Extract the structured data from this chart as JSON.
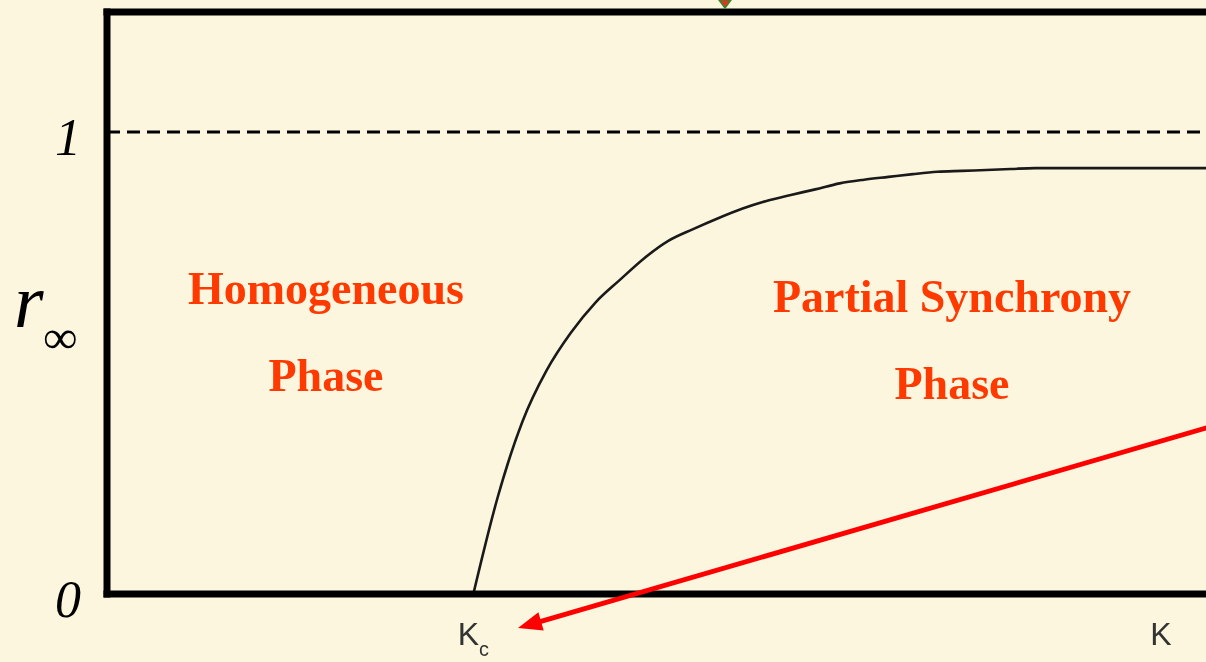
{
  "chart_data": {
    "type": "line",
    "xlabel": "K",
    "ylabel": "r$_{∞}$",
    "categories": [
      null,
      null,
      null,
      null,
      null,
      null,
      null,
      null,
      null,
      null,
      null,
      null,
      null,
      null,
      null,
      "K$_{c}$",
      null,
      null,
      null,
      null,
      null,
      null,
      null,
      null,
      null,
      null,
      null,
      null,
      null,
      null,
      null,
      null,
      null,
      null,
      null,
      null,
      null,
      null,
      null,
      null,
      null,
      null,
      null,
      null,
      null,
      null
    ],
    "series": [
      {
        "color": "#1a1a1a",
        "values": [
          null,
          null,
          null,
          null,
          null,
          null,
          null,
          null,
          null,
          null,
          null,
          null,
          null,
          null,
          null,
          0,
          0.21,
          0.372,
          0.484,
          0.566,
          0.631,
          0.68,
          0.727,
          0.765,
          0.79,
          0.813,
          0.834,
          0.851,
          0.864,
          0.876,
          0.889,
          0.897,
          0.903,
          0.909,
          0.914,
          0.916,
          0.918,
          0.92,
          0.922,
          0.922,
          0.922,
          0.922,
          0.922,
          0.922,
          0.922,
          0.922
        ]
      }
    ],
    "ylim": [
      0,
      1.26
    ],
    "yticks": [
      0,
      1
    ],
    "ref_lines": [
      {
        "axis": "y",
        "value": 1,
        "line_style": "dashed",
        "color": "#000000"
      }
    ],
    "annotations": [
      "Homogeneous\nPhase",
      "Partial Synchrony\nPhase"
    ]
  }
}
